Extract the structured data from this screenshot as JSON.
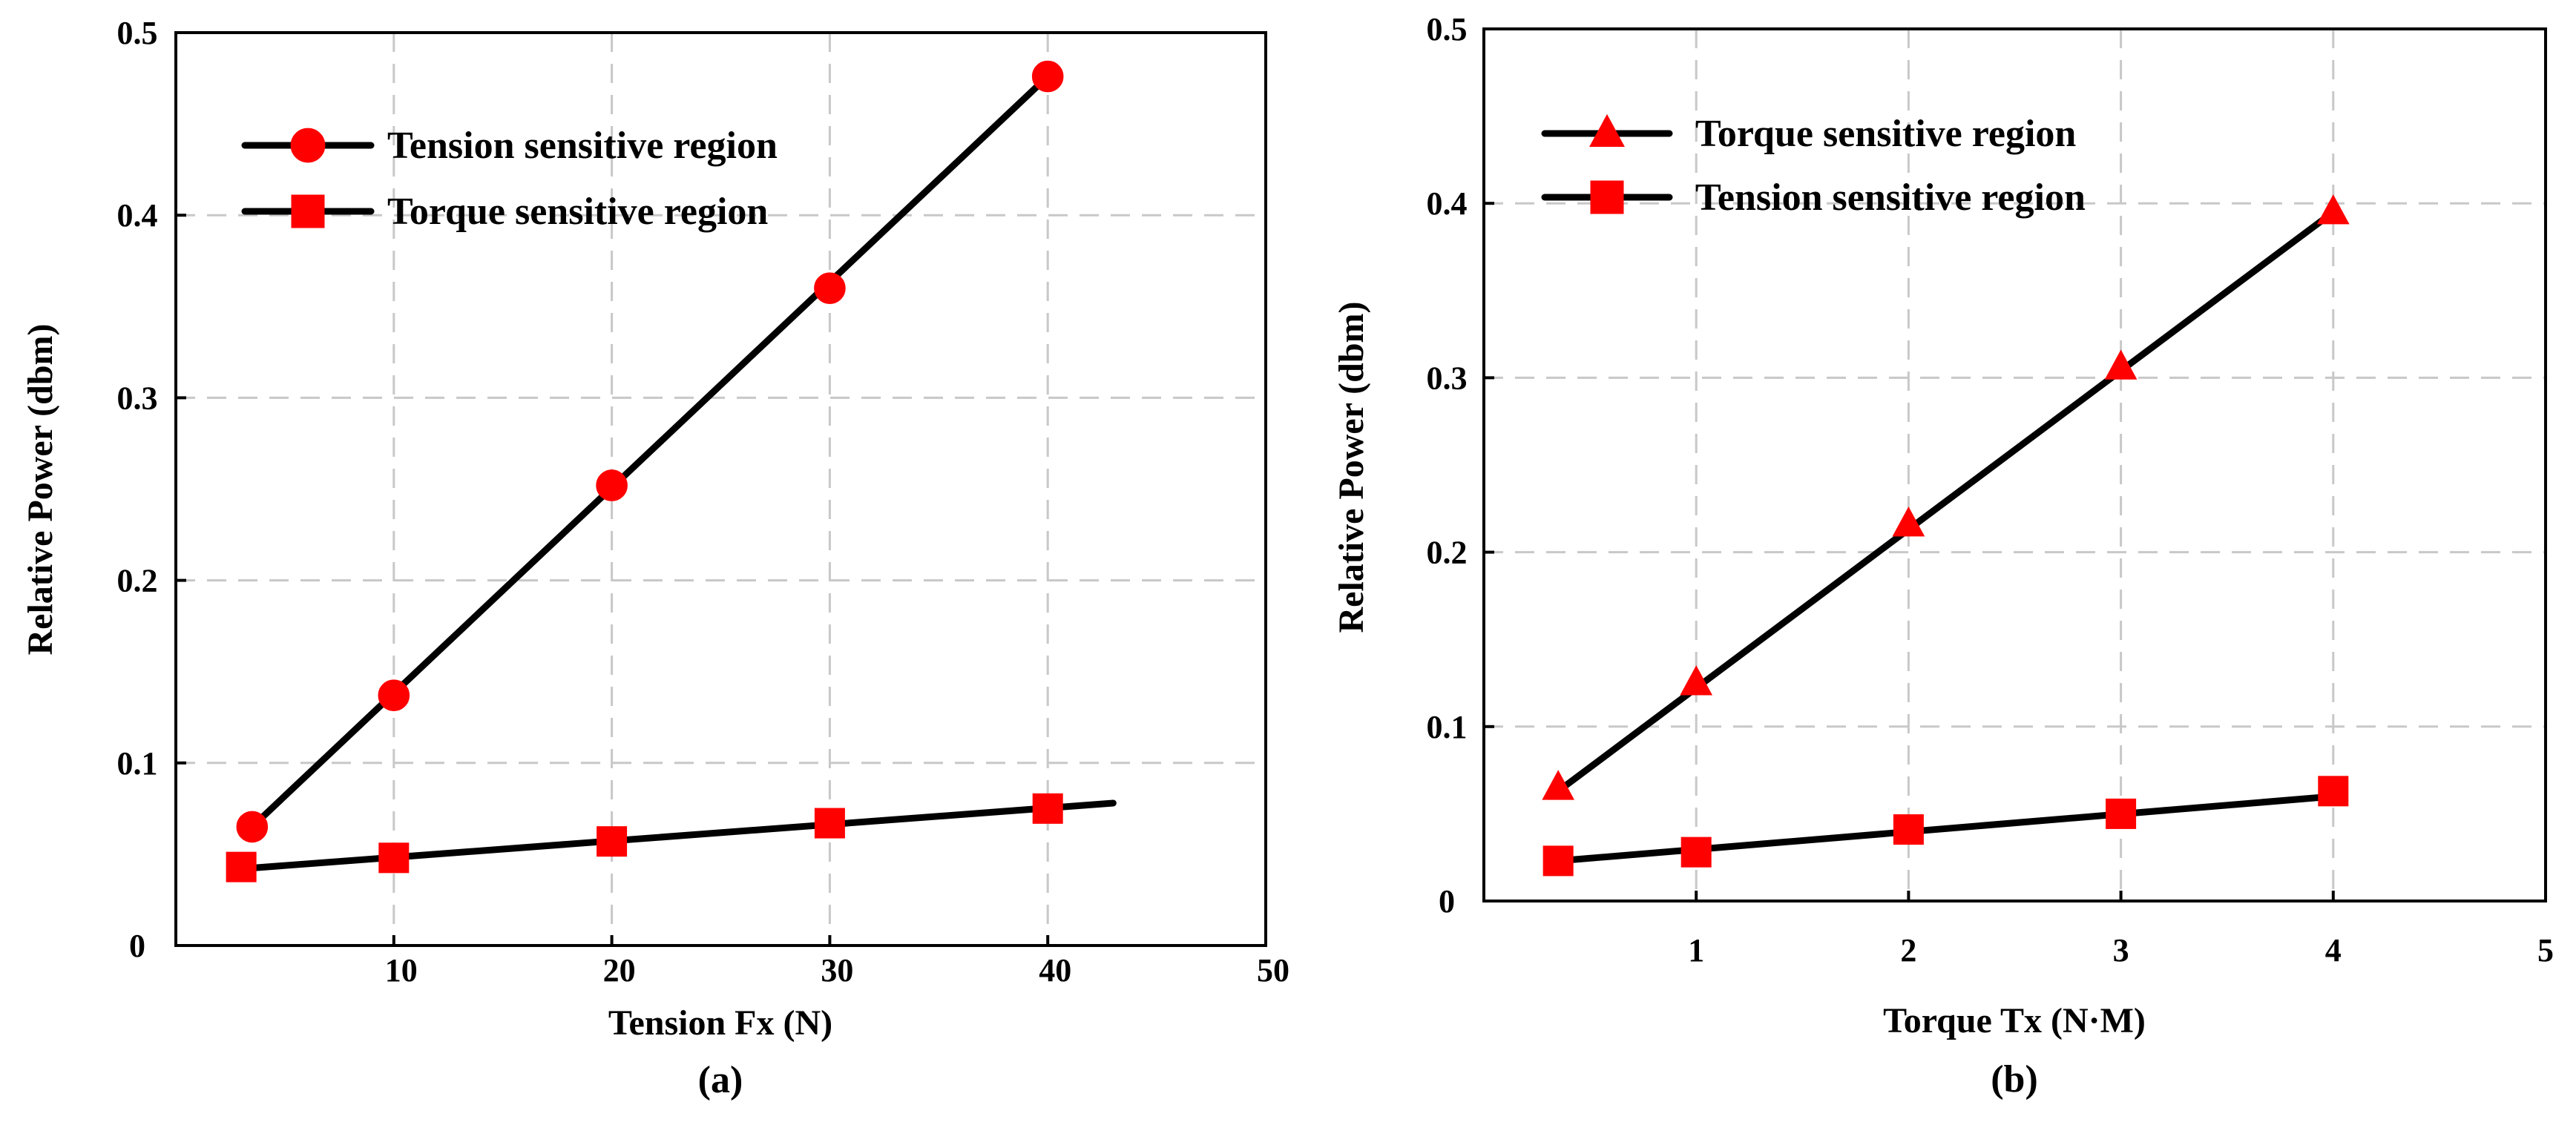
{
  "chart_data": [
    {
      "type": "line",
      "panel_label": "(a)",
      "xlabel": "Tension Fx (N)",
      "ylabel": "Relative Power (dbm)",
      "xlim": [
        0,
        50
      ],
      "ylim": [
        0,
        0.5
      ],
      "xticks": [
        10,
        20,
        30,
        40,
        50
      ],
      "yticks": [
        0,
        0.1,
        0.2,
        0.3,
        0.4,
        0.5
      ],
      "ytick_labels": [
        "0",
        "0.1",
        "0.2",
        "0.3",
        "0.4",
        "0.5"
      ],
      "grid": true,
      "legend_position": "top-left",
      "series": [
        {
          "name": "Tension sensitive region",
          "marker": "circle",
          "color": "#ff0000",
          "x": [
            3.5,
            10,
            20,
            30,
            40
          ],
          "y": [
            0.065,
            0.137,
            0.252,
            0.36,
            0.476
          ],
          "fit": [
            [
              3.5,
              0.065
            ],
            [
              40,
              0.476
            ]
          ]
        },
        {
          "name": "Torque sensitive region",
          "marker": "square",
          "color": "#ff0000",
          "x": [
            3,
            10,
            20,
            30,
            40
          ],
          "y": [
            0.043,
            0.048,
            0.057,
            0.067,
            0.075
          ],
          "fit": [
            [
              3,
              0.042
            ],
            [
              43,
              0.078
            ]
          ]
        }
      ]
    },
    {
      "type": "line",
      "panel_label": "(b)",
      "xlabel": "Torque Tx (N·M)",
      "ylabel": "Relative Power (dbm)",
      "xlim": [
        0,
        5
      ],
      "ylim": [
        0,
        0.5
      ],
      "xticks": [
        1,
        2,
        3,
        4,
        5
      ],
      "yticks": [
        0,
        0.1,
        0.2,
        0.3,
        0.4,
        0.5
      ],
      "ytick_labels": [
        "0",
        "0.1",
        "0.2",
        "0.3",
        "0.4",
        "0.5"
      ],
      "grid": true,
      "legend_position": "top-left",
      "series": [
        {
          "name": "Torque sensitive region",
          "marker": "triangle",
          "color": "#ff0000",
          "x": [
            0.35,
            1,
            2,
            3,
            4
          ],
          "y": [
            0.065,
            0.125,
            0.216,
            0.306,
            0.395
          ],
          "fit": [
            [
              0.35,
              0.063
            ],
            [
              4,
              0.395
            ]
          ]
        },
        {
          "name": "Tension sensitive region",
          "marker": "square",
          "color": "#ff0000",
          "x": [
            0.35,
            1,
            2,
            3,
            4
          ],
          "y": [
            0.023,
            0.028,
            0.041,
            0.05,
            0.063
          ],
          "fit": [
            [
              0.35,
              0.023
            ],
            [
              4,
              0.06
            ]
          ]
        }
      ]
    }
  ]
}
